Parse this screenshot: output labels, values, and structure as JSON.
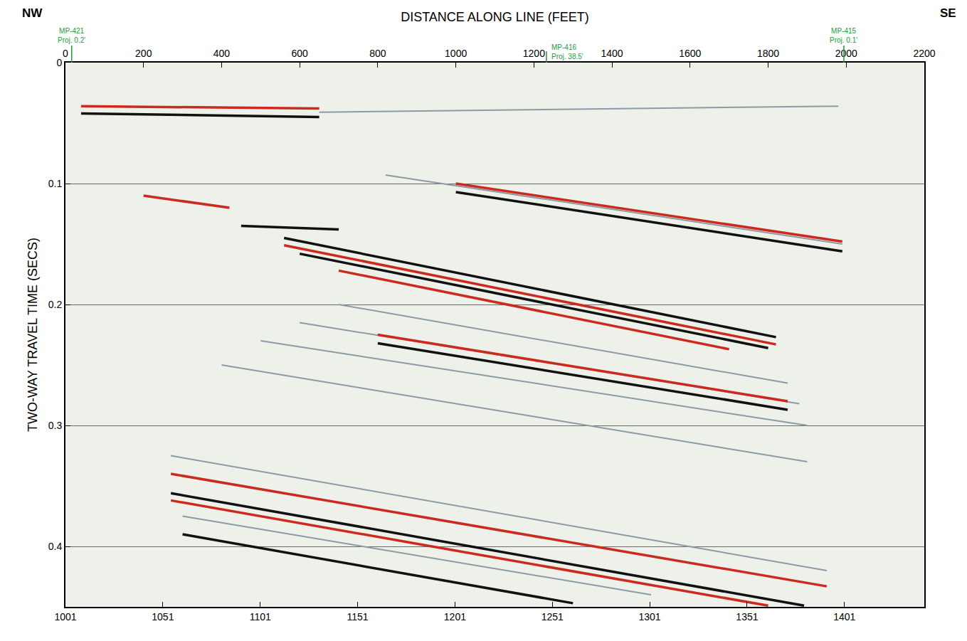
{
  "chart_data": {
    "type": "seismic_section",
    "x_label": "DISTANCE ALONG LINE (FEET)",
    "y_label": "TWO-WAY TRAVEL TIME (SECS)",
    "corner_labels": {
      "left": "NW",
      "right": "SE"
    },
    "xlim": [
      0,
      2200
    ],
    "xticks": [
      0,
      200,
      400,
      600,
      800,
      1000,
      1200,
      1400,
      1600,
      1800,
      2000,
      2200
    ],
    "x2lim": [
      1001,
      1442
    ],
    "x2ticks": [
      1001,
      1051,
      1101,
      1151,
      1201,
      1251,
      1301,
      1351,
      1401
    ],
    "ylim": [
      0,
      0.45
    ],
    "yticks": [
      0,
      0.1,
      0.2,
      0.3,
      0.4
    ],
    "grid": true,
    "wells": [
      {
        "name": "MP-421",
        "note": "Proj. 0.2'",
        "x": 16
      },
      {
        "name": "MP-416",
        "note": "Proj. 38.5'",
        "x": 1232
      },
      {
        "name": "MP-415",
        "note": "Proj. 0.1'",
        "x": 1994
      }
    ],
    "series": [
      {
        "color": "#cc2a1e",
        "x": [
          40,
          650
        ],
        "values": [
          0.036,
          0.038
        ]
      },
      {
        "color": "#111111",
        "x": [
          40,
          650
        ],
        "values": [
          0.042,
          0.045
        ]
      },
      {
        "color": "#8c9aa6",
        "x": [
          650,
          1980
        ],
        "values": [
          0.041,
          0.036
        ]
      },
      {
        "color": "#cc2a1e",
        "x": [
          200,
          420
        ],
        "values": [
          0.11,
          0.12
        ]
      },
      {
        "color": "#111111",
        "x": [
          450,
          700
        ],
        "values": [
          0.135,
          0.138
        ]
      },
      {
        "color": "#8c9aa6",
        "x": [
          820,
          1990
        ],
        "values": [
          0.093,
          0.15
        ]
      },
      {
        "color": "#cc2a1e",
        "x": [
          1000,
          1990
        ],
        "values": [
          0.1,
          0.148
        ]
      },
      {
        "color": "#111111",
        "x": [
          1000,
          1990
        ],
        "values": [
          0.107,
          0.156
        ]
      },
      {
        "color": "#111111",
        "x": [
          560,
          1820
        ],
        "values": [
          0.145,
          0.227
        ]
      },
      {
        "color": "#cc2a1e",
        "x": [
          560,
          1820
        ],
        "values": [
          0.151,
          0.233
        ]
      },
      {
        "color": "#111111",
        "x": [
          600,
          1800
        ],
        "values": [
          0.158,
          0.236
        ]
      },
      {
        "color": "#cc2a1e",
        "x": [
          700,
          1700
        ],
        "values": [
          0.172,
          0.237
        ]
      },
      {
        "color": "#8c9aa6",
        "x": [
          700,
          1850
        ],
        "values": [
          0.2,
          0.265
        ]
      },
      {
        "color": "#8c9aa6",
        "x": [
          600,
          1880
        ],
        "values": [
          0.215,
          0.282
        ]
      },
      {
        "color": "#cc2a1e",
        "x": [
          800,
          1850
        ],
        "values": [
          0.225,
          0.28
        ]
      },
      {
        "color": "#111111",
        "x": [
          800,
          1850
        ],
        "values": [
          0.232,
          0.287
        ]
      },
      {
        "color": "#8c9aa6",
        "x": [
          500,
          1900
        ],
        "values": [
          0.23,
          0.3
        ]
      },
      {
        "color": "#8c9aa6",
        "x": [
          400,
          1900
        ],
        "values": [
          0.25,
          0.33
        ]
      },
      {
        "color": "#8c9aa6",
        "x": [
          270,
          1950
        ],
        "values": [
          0.325,
          0.42
        ]
      },
      {
        "color": "#cc2a1e",
        "x": [
          270,
          1950
        ],
        "values": [
          0.34,
          0.433
        ]
      },
      {
        "color": "#111111",
        "x": [
          270,
          1892
        ],
        "values": [
          0.356,
          0.449
        ]
      },
      {
        "color": "#cc2a1e",
        "x": [
          270,
          1800
        ],
        "values": [
          0.362,
          0.449
        ]
      },
      {
        "color": "#8c9aa6",
        "x": [
          300,
          1500
        ],
        "values": [
          0.375,
          0.44
        ]
      },
      {
        "color": "#111111",
        "x": [
          300,
          1300
        ],
        "values": [
          0.39,
          0.447
        ]
      }
    ]
  }
}
